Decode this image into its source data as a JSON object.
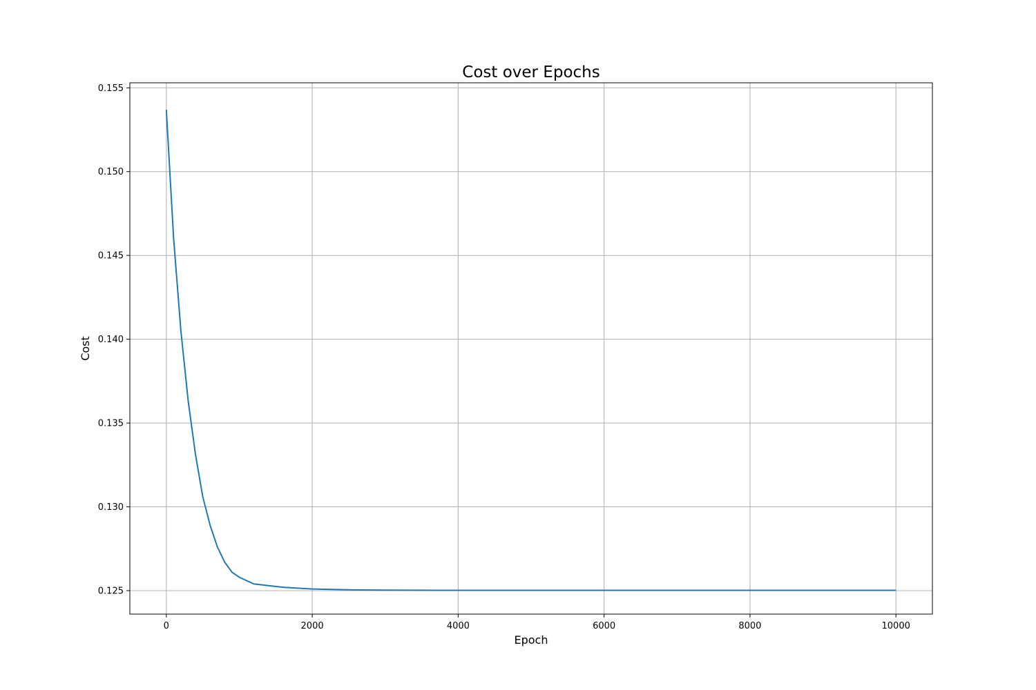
{
  "chart_data": {
    "type": "line",
    "title": "Cost over Epochs",
    "xlabel": "Epoch",
    "ylabel": "Cost",
    "xlim": [
      -500,
      10500
    ],
    "ylim": [
      0.1236,
      0.1553
    ],
    "xticks": [
      0,
      2000,
      4000,
      6000,
      8000,
      10000
    ],
    "xtick_labels": [
      "0",
      "2000",
      "4000",
      "6000",
      "8000",
      "10000"
    ],
    "yticks": [
      0.125,
      0.13,
      0.135,
      0.14,
      0.145,
      0.15,
      0.155
    ],
    "ytick_labels": [
      "0.125",
      "0.130",
      "0.135",
      "0.140",
      "0.145",
      "0.150",
      "0.155"
    ],
    "grid": true,
    "line_color": "#1f77b4",
    "series": [
      {
        "x": [
          0,
          100,
          200,
          300,
          400,
          500,
          600,
          700,
          800,
          900,
          1000,
          1200,
          1400,
          1600,
          1800,
          2000,
          2500,
          3000,
          4000,
          5000,
          6000,
          7000,
          8000,
          9000,
          10000
        ],
        "values": [
          0.1537,
          0.146,
          0.1405,
          0.1363,
          0.1331,
          0.1306,
          0.1289,
          0.1276,
          0.1267,
          0.1261,
          0.1258,
          0.1254,
          0.1253,
          0.1252,
          0.12515,
          0.1251,
          0.12505,
          0.12503,
          0.12502,
          0.12502,
          0.12502,
          0.12502,
          0.12502,
          0.12502,
          0.12502
        ]
      }
    ]
  }
}
